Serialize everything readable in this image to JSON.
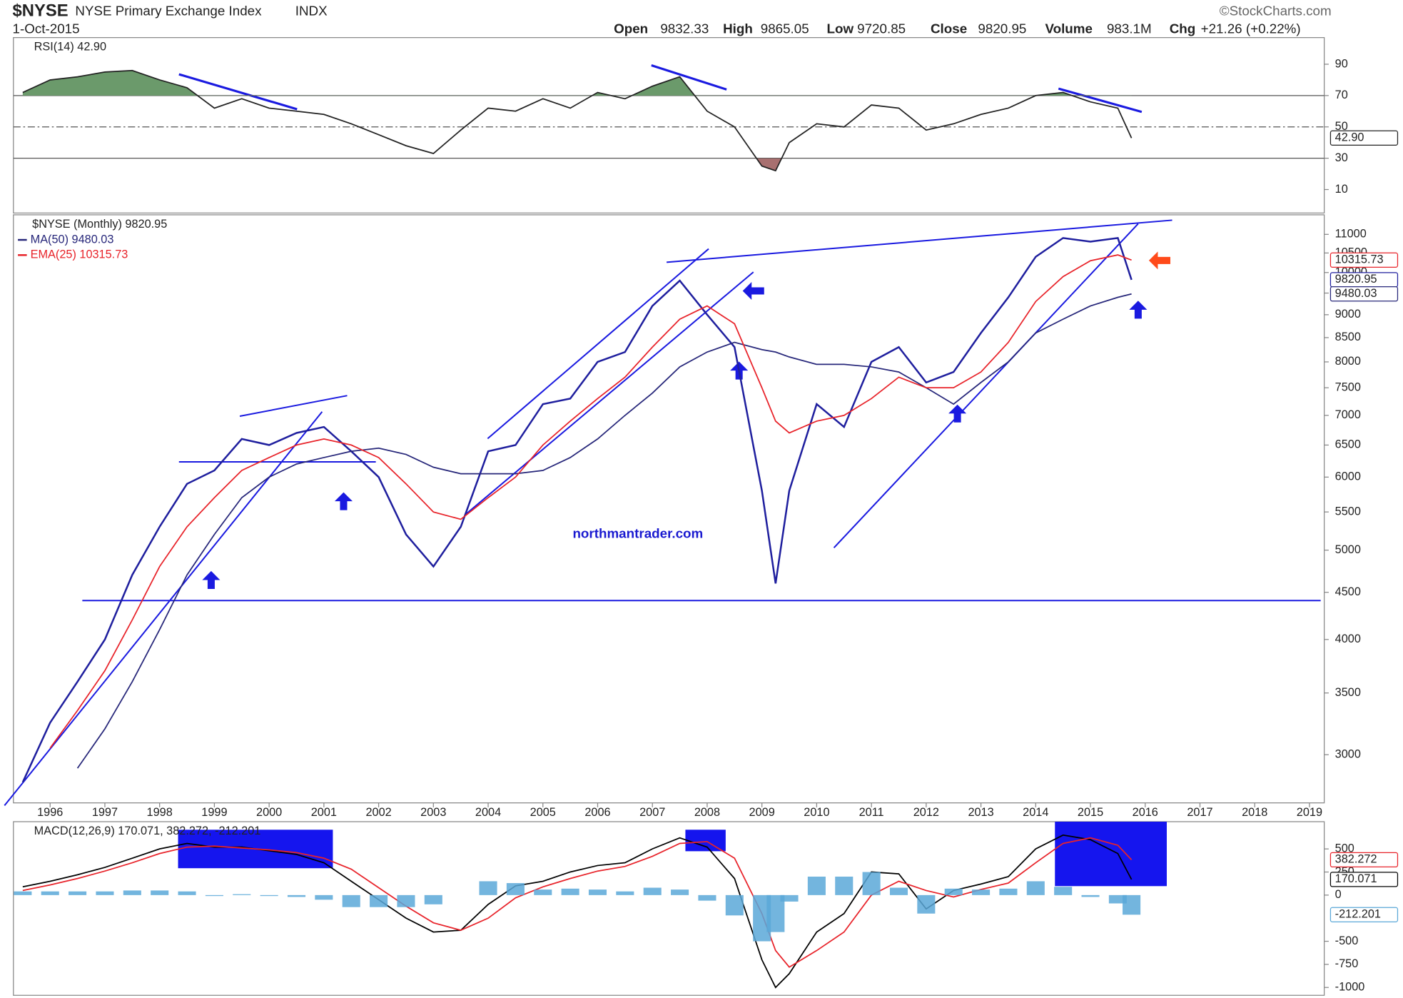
{
  "header": {
    "symbol": "$NYSE",
    "name": "NYSE Primary Exchange Index",
    "exchange": "INDX",
    "date": "1-Oct-2015",
    "source": "©StockCharts.com",
    "open_label": "Open",
    "open": 9832.33,
    "high_label": "High",
    "high": 9865.05,
    "low_label": "Low",
    "low": 9720.85,
    "close_label": "Close",
    "close": 9820.95,
    "volume_label": "Volume",
    "volume": "983.1M",
    "chg_label": "Chg",
    "chg": "+21.26 (+0.22%)",
    "watermark": "northmantrader.com"
  },
  "chart_data": [
    {
      "type": "line",
      "legend": "RSI(14) 42.90",
      "xlim": [
        1995.33,
        2019.27
      ],
      "ylim": [
        -5,
        107
      ],
      "yticks": [
        10,
        30,
        50,
        70,
        90
      ],
      "bands": [
        30,
        70
      ],
      "midline": 50,
      "overbought_color": "#6b9a6b",
      "oversold_color": "#a87070",
      "x": [
        1995.5,
        1996,
        1996.5,
        1997,
        1997.5,
        1998,
        1998.5,
        1999,
        1999.5,
        2000,
        2000.5,
        2001,
        2001.5,
        2002,
        2002.5,
        2003,
        2003.5,
        2004,
        2004.5,
        2005,
        2005.5,
        2006,
        2006.5,
        2007,
        2007.5,
        2008,
        2008.5,
        2009,
        2009.25,
        2009.5,
        2010,
        2010.5,
        2011,
        2011.5,
        2012,
        2012.5,
        2013,
        2013.5,
        2014,
        2014.5,
        2015,
        2015.5,
        2015.75
      ],
      "series": [
        {
          "name": "RSI(14)",
          "color": "#222222",
          "last_label": "42.90",
          "values": [
            72,
            80,
            82,
            85,
            86,
            80,
            75,
            62,
            68,
            62,
            60,
            58,
            52,
            45,
            38,
            33,
            48,
            62,
            60,
            68,
            62,
            72,
            68,
            76,
            82,
            60,
            50,
            25,
            22,
            40,
            52,
            50,
            64,
            62,
            48,
            52,
            58,
            62,
            70,
            72,
            66,
            62,
            42.9
          ]
        }
      ]
    },
    {
      "type": "line",
      "legend": "$NYSE (Monthly) 9820.95",
      "log_scale": true,
      "xlim": [
        1995.33,
        2019.27
      ],
      "ylim": [
        2660,
        11550
      ],
      "yticks": [
        3000,
        3500,
        4000,
        4500,
        5000,
        5500,
        6000,
        6500,
        7000,
        7500,
        8000,
        8500,
        9000,
        9500,
        10000,
        10500,
        11000
      ],
      "xticks": [
        1996,
        1997,
        1998,
        1999,
        2000,
        2001,
        2002,
        2003,
        2004,
        2005,
        2006,
        2007,
        2008,
        2009,
        2010,
        2011,
        2012,
        2013,
        2014,
        2015,
        2016,
        2017,
        2018,
        2019
      ],
      "x": [
        1995.5,
        1996,
        1996.5,
        1997,
        1997.5,
        1998,
        1998.5,
        1999,
        1999.5,
        2000,
        2000.5,
        2001,
        2001.5,
        2002,
        2002.5,
        2003,
        2003.5,
        2004,
        2004.5,
        2005,
        2005.5,
        2006,
        2006.5,
        2007,
        2007.5,
        2008,
        2008.5,
        2009,
        2009.25,
        2009.5,
        2010,
        2010.5,
        2011,
        2011.5,
        2012,
        2012.5,
        2013,
        2013.5,
        2014,
        2014.5,
        2015,
        2015.5,
        2015.75
      ],
      "series": [
        {
          "name": "$NYSE",
          "color": "#1f1f9e",
          "last_label": "9820.95",
          "values": [
            2800,
            3250,
            3600,
            4000,
            4700,
            5300,
            5900,
            6100,
            6600,
            6500,
            6700,
            6800,
            6400,
            6000,
            5200,
            4800,
            5300,
            6400,
            6500,
            7200,
            7300,
            8000,
            8200,
            9200,
            9800,
            9000,
            8300,
            5800,
            4600,
            5800,
            7200,
            6800,
            8000,
            8300,
            7600,
            7800,
            8600,
            9400,
            10400,
            10900,
            10800,
            10900,
            9820.95
          ]
        },
        {
          "name": "MA(50) 9480.03",
          "color": "#27277a",
          "last_label": "9480.03",
          "values": [
            null,
            null,
            2900,
            3200,
            3600,
            4100,
            4700,
            5200,
            5700,
            6000,
            6200,
            6300,
            6400,
            6450,
            6350,
            6150,
            6050,
            6050,
            6050,
            6100,
            6300,
            6600,
            7000,
            7400,
            7900,
            8200,
            8400,
            8250,
            8200,
            8100,
            7950,
            7950,
            7900,
            7800,
            7500,
            7200,
            7600,
            8000,
            8600,
            8900,
            9200,
            9400,
            9480.03
          ]
        },
        {
          "name": "EMA(25) 10315.73",
          "color": "#e8232a",
          "last_label": "10315.73",
          "values": [
            null,
            3050,
            3350,
            3700,
            4200,
            4800,
            5300,
            5700,
            6100,
            6300,
            6500,
            6600,
            6500,
            6300,
            5900,
            5500,
            5400,
            5700,
            6000,
            6500,
            6900,
            7300,
            7700,
            8300,
            8900,
            9200,
            8800,
            7500,
            6900,
            6700,
            6900,
            7000,
            7300,
            7700,
            7500,
            7500,
            7800,
            8400,
            9300,
            9900,
            10300,
            10450,
            10315.73
          ]
        }
      ]
    },
    {
      "type": "line",
      "legend": "MACD(12,26,9) 170.071, 382.272, -212.201",
      "xlim": [
        1995.33,
        2019.27
      ],
      "ylim": [
        -1085,
        795
      ],
      "yticks": [
        500,
        250,
        0,
        -500,
        -750,
        -1000
      ],
      "x": [
        1995.5,
        1996,
        1996.5,
        1997,
        1997.5,
        1998,
        1998.5,
        1999,
        1999.5,
        2000,
        2000.5,
        2001,
        2001.5,
        2002,
        2002.5,
        2003,
        2003.5,
        2004,
        2004.5,
        2005,
        2005.5,
        2006,
        2006.5,
        2007,
        2007.5,
        2008,
        2008.5,
        2009,
        2009.25,
        2009.5,
        2010,
        2010.5,
        2011,
        2011.5,
        2012,
        2012.5,
        2013,
        2013.5,
        2014,
        2014.5,
        2015,
        2015.5,
        2015.75
      ],
      "series": [
        {
          "name": "MACD",
          "kind": "line",
          "color": "#000000",
          "last_label": "170.071",
          "values": [
            90,
            150,
            220,
            300,
            400,
            500,
            560,
            520,
            520,
            480,
            440,
            350,
            150,
            -50,
            -250,
            -400,
            -380,
            -100,
            100,
            150,
            250,
            320,
            350,
            500,
            620,
            520,
            180,
            -700,
            -1000,
            -850,
            -400,
            -200,
            250,
            230,
            -150,
            50,
            120,
            200,
            500,
            650,
            600,
            450,
            170.071
          ]
        },
        {
          "name": "Signal",
          "kind": "line",
          "color": "#e8232a",
          "last_label": "382.272",
          "values": [
            50,
            110,
            180,
            260,
            350,
            450,
            520,
            530,
            510,
            490,
            460,
            400,
            280,
            80,
            -120,
            -300,
            -380,
            -250,
            -30,
            90,
            180,
            260,
            310,
            420,
            560,
            580,
            400,
            -200,
            -600,
            -780,
            -600,
            -400,
            0,
            150,
            50,
            -20,
            60,
            130,
            350,
            560,
            620,
            540,
            382.272
          ]
        },
        {
          "name": "Histogram",
          "kind": "bar",
          "color": "#5aa8d8",
          "last_label": "-212.201",
          "values": [
            40,
            40,
            40,
            40,
            50,
            50,
            40,
            -10,
            10,
            -10,
            -20,
            -50,
            -130,
            -130,
            -130,
            -100,
            0,
            150,
            130,
            60,
            70,
            60,
            40,
            80,
            60,
            -60,
            -220,
            -500,
            -400,
            -70,
            200,
            200,
            250,
            80,
            -200,
            70,
            60,
            70,
            150,
            90,
            -20,
            -90,
            -212.201
          ]
        }
      ]
    }
  ]
}
